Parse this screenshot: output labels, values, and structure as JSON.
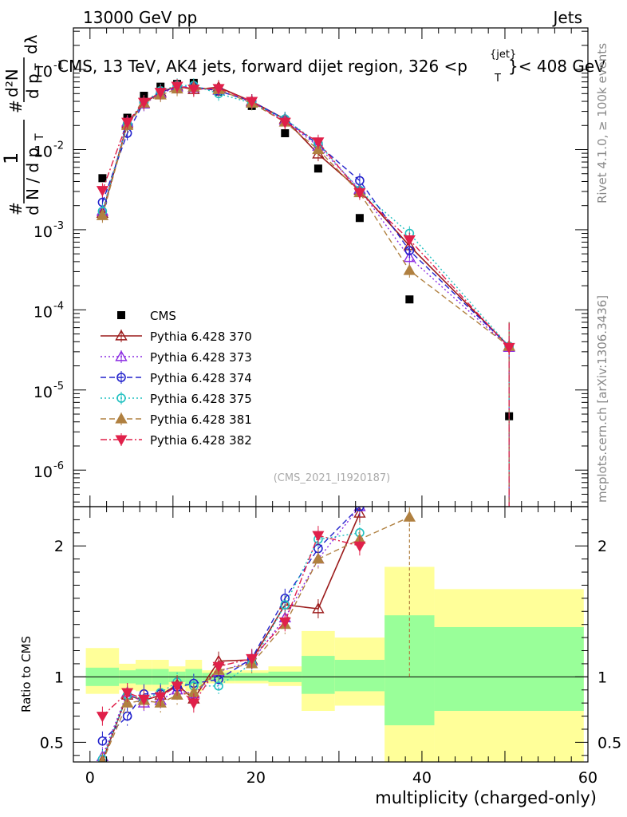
{
  "header": {
    "left": "13000 GeV pp",
    "right": "Jets",
    "title": "CMS, 13 TeV, AK4 jets, forward dijet region, 326 <p",
    "title_sup": "{jet}",
    "title_sub": "T",
    "title_end": "}< 408 GeV",
    "analysis_id": "(CMS_2021_I1920187)"
  },
  "side": {
    "rivet": "Rivet 4.1.0, ≥ 100k events",
    "mcplots": "mcplots.cern.ch [arXiv:1306.3436]"
  },
  "chart_data": [
    {
      "type": "scatter",
      "panel": "main",
      "ylabel": "1/dN/dpT d²N/dpT dλ",
      "ylabel_parts": {
        "num_a": "1",
        "den_a": "d N / d p",
        "sub_a": "T",
        "num_b": "d²N",
        "den_b": "d p",
        "sub_b": "T",
        "den_c": "dλ",
        "hash": "#"
      },
      "yscale": "log",
      "ylim": [
        3.5e-07,
        0.33
      ],
      "xlim": [
        -2,
        60
      ],
      "ytick_labels": [
        "10^{-6}",
        "10^{-5}",
        "10^{-4}",
        "10^{-3}",
        "10^{-2}",
        "10^{-1}"
      ],
      "legend_position": "middle-left",
      "series": [
        {
          "name": "CMS",
          "marker": "square-filled",
          "color": "#000000",
          "linestyle": "none",
          "x": [
            1.5,
            4.5,
            6.5,
            8.5,
            10.5,
            12.5,
            15.5,
            19.5,
            23.5,
            27.5,
            32.5,
            38.5,
            50.5
          ],
          "y": [
            0.0044,
            0.025,
            0.047,
            0.061,
            0.066,
            0.068,
            0.053,
            0.035,
            0.016,
            0.0058,
            0.0014,
            0.000135,
            4.7e-06
          ]
        },
        {
          "name": "Pythia 6.428 370",
          "marker": "triangle-up-open",
          "color": "#9b1b1b",
          "linestyle": "solid",
          "x": [
            1.5,
            4.5,
            6.5,
            8.5,
            10.5,
            12.5,
            15.5,
            19.5,
            23.5,
            27.5,
            32.5,
            38.5,
            50.5
          ],
          "y": [
            0.0016,
            0.021,
            0.038,
            0.052,
            0.062,
            0.056,
            0.06,
            0.04,
            0.024,
            0.0088,
            0.0031,
            0.00063,
            3.5e-05
          ]
        },
        {
          "name": "Pythia 6.428 373",
          "marker": "triangle-up-open",
          "color": "#8a2be2",
          "linestyle": "dotted",
          "x": [
            1.5,
            4.5,
            6.5,
            8.5,
            10.5,
            12.5,
            15.5,
            19.5,
            23.5,
            27.5,
            32.5,
            38.5,
            50.5
          ],
          "y": [
            0.0017,
            0.022,
            0.037,
            0.05,
            0.06,
            0.059,
            0.055,
            0.039,
            0.023,
            0.011,
            0.0032,
            0.00045,
            3.4e-05
          ]
        },
        {
          "name": "Pythia 6.428 374",
          "marker": "circle-open",
          "color": "#2222cc",
          "linestyle": "dashed",
          "x": [
            1.5,
            4.5,
            6.5,
            8.5,
            10.5,
            12.5,
            15.5,
            19.5,
            23.5,
            27.5,
            32.5,
            38.5,
            50.5
          ],
          "y": [
            0.0022,
            0.016,
            0.039,
            0.052,
            0.06,
            0.061,
            0.054,
            0.04,
            0.024,
            0.0115,
            0.0041,
            0.00055,
            3.5e-05
          ]
        },
        {
          "name": "Pythia 6.428 375",
          "marker": "circle-open",
          "color": "#20c0c0",
          "linestyle": "dotted",
          "x": [
            1.5,
            4.5,
            6.5,
            8.5,
            10.5,
            12.5,
            15.5,
            19.5,
            23.5,
            27.5,
            32.5,
            38.5,
            50.5
          ],
          "y": [
            0.0017,
            0.021,
            0.039,
            0.054,
            0.063,
            0.063,
            0.05,
            0.038,
            0.024,
            0.012,
            0.0031,
            0.0009,
            3.5e-05
          ]
        },
        {
          "name": "Pythia 6.428 381",
          "marker": "triangle-up-filled",
          "color": "#b08040",
          "linestyle": "dashed",
          "x": [
            1.5,
            4.5,
            6.5,
            8.5,
            10.5,
            12.5,
            15.5,
            19.5,
            23.5,
            27.5,
            32.5,
            38.5,
            50.5
          ],
          "y": [
            0.0015,
            0.02,
            0.038,
            0.048,
            0.057,
            0.06,
            0.056,
            0.038,
            0.022,
            0.01,
            0.0029,
            0.00031,
            3.5e-05
          ]
        },
        {
          "name": "Pythia 6.428 382",
          "marker": "triangle-down-filled",
          "color": "#e0204a",
          "linestyle": "dashdot",
          "x": [
            1.5,
            4.5,
            6.5,
            8.5,
            10.5,
            12.5,
            15.5,
            19.5,
            23.5,
            27.5,
            32.5,
            38.5,
            50.5
          ],
          "y": [
            0.0031,
            0.022,
            0.039,
            0.052,
            0.062,
            0.057,
            0.058,
            0.04,
            0.022,
            0.0125,
            0.0029,
            0.00075,
            3.4e-05
          ]
        }
      ]
    },
    {
      "type": "line",
      "panel": "ratio",
      "ylabel": "Ratio to CMS",
      "xlabel": "multiplicity (charged-only)",
      "ylim": [
        0.35,
        2.3
      ],
      "xlim": [
        -2,
        60
      ],
      "yticks": [
        0.5,
        1,
        2
      ],
      "ytick_labels": [
        "0.5",
        "1",
        "2"
      ],
      "xticks": [
        0,
        20,
        40,
        60
      ],
      "xtick_labels": [
        "0",
        "20",
        "40",
        "60"
      ],
      "uncertainty_bands": {
        "edges": [
          -0.5,
          3.5,
          5.5,
          7.5,
          9.5,
          11.5,
          13.5,
          17.5,
          21.5,
          25.5,
          29.5,
          35.5,
          41.5,
          59.5
        ],
        "inner_lo": [
          0.93,
          0.95,
          0.94,
          0.94,
          0.96,
          0.94,
          0.97,
          0.97,
          0.96,
          0.87,
          0.89,
          0.63,
          0.74
        ],
        "inner_hi": [
          1.07,
          1.05,
          1.06,
          1.06,
          1.04,
          1.06,
          1.03,
          1.03,
          1.04,
          1.16,
          1.13,
          1.47,
          1.38
        ],
        "outer_lo": [
          0.87,
          0.9,
          0.89,
          0.89,
          0.92,
          0.89,
          0.95,
          0.95,
          0.93,
          0.74,
          0.78,
          0.35,
          0.35
        ],
        "outer_hi": [
          1.22,
          1.1,
          1.13,
          1.13,
          1.08,
          1.13,
          1.05,
          1.05,
          1.08,
          1.35,
          1.3,
          1.84,
          1.67
        ],
        "inner_color": "#99ff99",
        "outer_color": "#ffff99"
      },
      "series": [
        {
          "name": "Pythia 6.428 370",
          "color": "#9b1b1b",
          "linestyle": "solid",
          "marker": "triangle-up-open",
          "x": [
            1.5,
            4.5,
            6.5,
            8.5,
            10.5,
            12.5,
            15.5,
            19.5,
            23.5,
            27.5,
            32.5
          ],
          "y": [
            0.36,
            0.86,
            0.82,
            0.86,
            0.94,
            0.83,
            1.12,
            1.13,
            1.55,
            1.52,
            2.25
          ]
        },
        {
          "name": "Pythia 6.428 373",
          "color": "#8a2be2",
          "linestyle": "dotted",
          "marker": "triangle-up-open",
          "x": [
            1.5,
            4.5,
            6.5,
            8.5,
            10.5,
            12.5,
            15.5,
            19.5,
            23.5,
            27.5,
            32.5
          ],
          "y": [
            0.39,
            0.88,
            0.8,
            0.82,
            0.9,
            0.87,
            1.04,
            1.12,
            1.45,
            1.9,
            2.3
          ]
        },
        {
          "name": "Pythia 6.428 374",
          "color": "#2222cc",
          "linestyle": "dashed",
          "marker": "circle-open",
          "x": [
            1.5,
            4.5,
            6.5,
            8.5,
            10.5,
            12.5,
            15.5,
            19.5,
            23.5,
            27.5,
            32.5
          ],
          "y": [
            0.51,
            0.7,
            0.87,
            0.87,
            0.92,
            0.95,
            0.98,
            1.14,
            1.6,
            1.98,
            2.3
          ]
        },
        {
          "name": "Pythia 6.428 375",
          "color": "#20c0c0",
          "linestyle": "dotted",
          "marker": "circle-open",
          "x": [
            1.5,
            4.5,
            6.5,
            8.5,
            10.5,
            12.5,
            15.5,
            19.5,
            23.5,
            27.5,
            32.5
          ],
          "y": [
            0.37,
            0.86,
            0.83,
            0.88,
            0.96,
            0.93,
            0.93,
            1.1,
            1.55,
            2.05,
            2.1
          ]
        },
        {
          "name": "Pythia 6.428 381",
          "color": "#b08040",
          "linestyle": "dashed",
          "marker": "triangle-up-filled",
          "x": [
            1.5,
            4.5,
            6.5,
            8.5,
            10.5,
            12.5,
            15.5,
            19.5,
            23.5,
            27.5,
            32.5,
            38.5
          ],
          "y": [
            0.35,
            0.8,
            0.82,
            0.8,
            0.86,
            0.88,
            1.05,
            1.1,
            1.4,
            1.9,
            2.05,
            2.22
          ]
        },
        {
          "name": "Pythia 6.428 382",
          "color": "#e0204a",
          "linestyle": "dashdot",
          "marker": "triangle-down-filled",
          "x": [
            1.5,
            4.5,
            6.5,
            8.5,
            10.5,
            12.5,
            15.5,
            19.5,
            23.5,
            27.5,
            32.5
          ],
          "y": [
            0.7,
            0.88,
            0.83,
            0.85,
            0.93,
            0.8,
            1.08,
            1.14,
            1.42,
            2.08,
            2.0
          ]
        }
      ]
    }
  ]
}
